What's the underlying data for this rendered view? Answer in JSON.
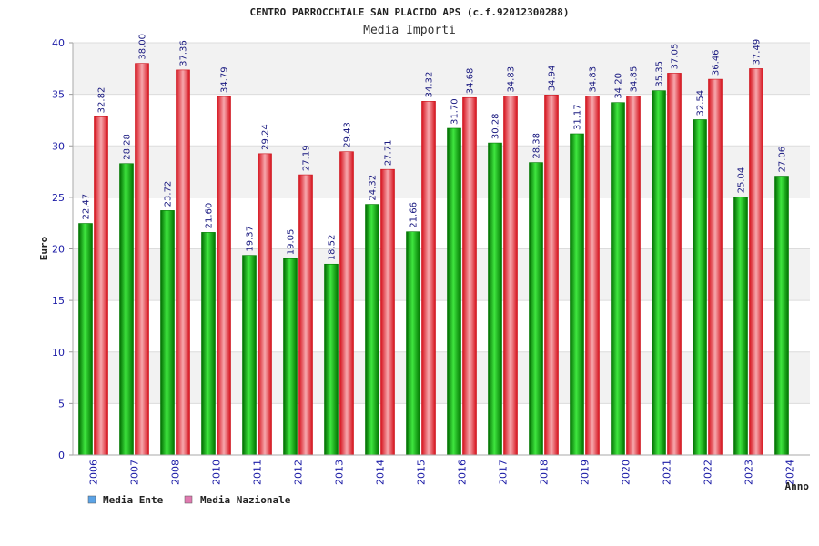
{
  "chart_data": {
    "type": "bar",
    "title": "CENTRO PARROCCHIALE SAN PLACIDO APS (c.f.92012300288)",
    "subtitle": "Media Importi",
    "ylabel": "Euro",
    "xlabel": "Anno",
    "ylim": [
      0,
      40
    ],
    "yticks": [
      "0",
      "5",
      "10",
      "15",
      "20",
      "25",
      "30",
      "35",
      "40"
    ],
    "grid": true,
    "legend_position": "bottom-left",
    "categories": [
      "2006",
      "2007",
      "2008",
      "2010",
      "2011",
      "2012",
      "2013",
      "2014",
      "2015",
      "2016",
      "2017",
      "2018",
      "2019",
      "2020",
      "2021",
      "2022",
      "2023",
      "2024"
    ],
    "series": [
      {
        "name": "Media Ente",
        "legend_color": "#5ba3e6",
        "bar_color": "#00a000",
        "values": [
          22.47,
          28.28,
          23.72,
          21.6,
          19.37,
          19.05,
          18.52,
          24.32,
          21.66,
          31.7,
          30.28,
          28.38,
          31.17,
          34.2,
          35.35,
          32.54,
          25.04,
          27.06
        ],
        "labels": [
          "22.47",
          "28.28",
          "23.72",
          "21.60",
          "19.37",
          "19.05",
          "18.52",
          "24.32",
          "21.66",
          "31.70",
          "30.28",
          "28.38",
          "31.17",
          "34.20",
          "35.35",
          "32.54",
          "25.04",
          "27.06"
        ]
      },
      {
        "name": "Media Nazionale",
        "legend_color": "#e07ab0",
        "bar_color": "#e8202a",
        "values": [
          32.82,
          38.0,
          37.36,
          34.79,
          29.24,
          27.19,
          29.43,
          27.71,
          34.32,
          34.68,
          34.83,
          34.94,
          34.83,
          34.85,
          37.05,
          36.46,
          37.49,
          null
        ],
        "labels": [
          "32.82",
          "38.00",
          "37.36",
          "34.79",
          "29.24",
          "27.19",
          "29.43",
          "27.71",
          "34.32",
          "34.68",
          "34.83",
          "34.94",
          "34.83",
          "34.85",
          "37.05",
          "36.46",
          "37.49",
          null
        ]
      }
    ]
  }
}
